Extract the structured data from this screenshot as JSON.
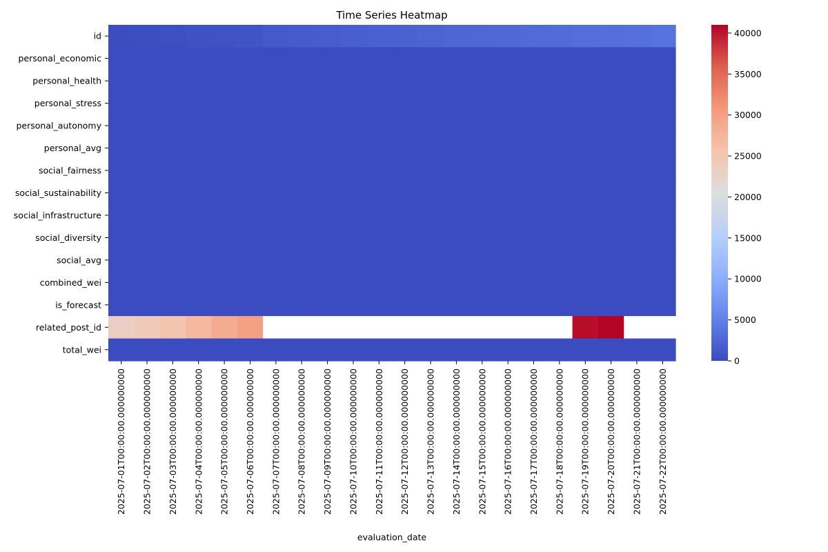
{
  "chart_data": {
    "type": "heatmap",
    "title": "Time Series Heatmap",
    "xlabel": "evaluation_date",
    "ylabel": "",
    "x": [
      "2025-07-01T00:00:00.000000000",
      "2025-07-02T00:00:00.000000000",
      "2025-07-03T00:00:00.000000000",
      "2025-07-04T00:00:00.000000000",
      "2025-07-05T00:00:00.000000000",
      "2025-07-06T00:00:00.000000000",
      "2025-07-07T00:00:00.000000000",
      "2025-07-08T00:00:00.000000000",
      "2025-07-09T00:00:00.000000000",
      "2025-07-10T00:00:00.000000000",
      "2025-07-11T00:00:00.000000000",
      "2025-07-12T00:00:00.000000000",
      "2025-07-13T00:00:00.000000000",
      "2025-07-14T00:00:00.000000000",
      "2025-07-15T00:00:00.000000000",
      "2025-07-16T00:00:00.000000000",
      "2025-07-17T00:00:00.000000000",
      "2025-07-18T00:00:00.000000000",
      "2025-07-19T00:00:00.000000000",
      "2025-07-20T00:00:00.000000000",
      "2025-07-21T00:00:00.000000000",
      "2025-07-22T00:00:00.000000000"
    ],
    "y": [
      "id",
      "personal_economic",
      "personal_health",
      "personal_stress",
      "personal_autonomy",
      "personal_avg",
      "social_fairness",
      "social_sustainability",
      "social_infrastructure",
      "social_diversity",
      "social_avg",
      "combined_wei",
      "is_forecast",
      "related_post_id",
      "total_wei"
    ],
    "values": [
      [
        100,
        200,
        300,
        500,
        600,
        800,
        1200,
        1500,
        1600,
        1800,
        1900,
        2000,
        2200,
        2500,
        2600,
        2700,
        2800,
        2900,
        3200,
        3300,
        3400,
        3700
      ],
      [
        0,
        0,
        0,
        0,
        0,
        0,
        0,
        0,
        0,
        0,
        0,
        0,
        0,
        0,
        0,
        0,
        0,
        0,
        0,
        0,
        0,
        0
      ],
      [
        0,
        0,
        0,
        0,
        0,
        0,
        0,
        0,
        0,
        0,
        0,
        0,
        0,
        0,
        0,
        0,
        0,
        0,
        0,
        0,
        0,
        0
      ],
      [
        0,
        0,
        0,
        0,
        0,
        0,
        0,
        0,
        0,
        0,
        0,
        0,
        0,
        0,
        0,
        0,
        0,
        0,
        0,
        0,
        0,
        0
      ],
      [
        0,
        0,
        0,
        0,
        0,
        0,
        0,
        0,
        0,
        0,
        0,
        0,
        0,
        0,
        0,
        0,
        0,
        0,
        0,
        0,
        0,
        0
      ],
      [
        0,
        0,
        0,
        0,
        0,
        0,
        0,
        0,
        0,
        0,
        0,
        0,
        0,
        0,
        0,
        0,
        0,
        0,
        0,
        0,
        0,
        0
      ],
      [
        0,
        0,
        0,
        0,
        0,
        0,
        0,
        0,
        0,
        0,
        0,
        0,
        0,
        0,
        0,
        0,
        0,
        0,
        0,
        0,
        0,
        0
      ],
      [
        0,
        0,
        0,
        0,
        0,
        0,
        0,
        0,
        0,
        0,
        0,
        0,
        0,
        0,
        0,
        0,
        0,
        0,
        0,
        0,
        0,
        0
      ],
      [
        0,
        0,
        0,
        0,
        0,
        0,
        0,
        0,
        0,
        0,
        0,
        0,
        0,
        0,
        0,
        0,
        0,
        0,
        0,
        0,
        0,
        0
      ],
      [
        0,
        0,
        0,
        0,
        0,
        0,
        0,
        0,
        0,
        0,
        0,
        0,
        0,
        0,
        0,
        0,
        0,
        0,
        0,
        0,
        0,
        0
      ],
      [
        0,
        0,
        0,
        0,
        0,
        0,
        0,
        0,
        0,
        0,
        0,
        0,
        0,
        0,
        0,
        0,
        0,
        0,
        0,
        0,
        0,
        0
      ],
      [
        0,
        0,
        0,
        0,
        0,
        0,
        0,
        0,
        0,
        0,
        0,
        0,
        0,
        0,
        0,
        0,
        0,
        0,
        0,
        0,
        0,
        0
      ],
      [
        0,
        0,
        0,
        0,
        0,
        0,
        0,
        0,
        0,
        0,
        0,
        0,
        0,
        0,
        0,
        0,
        0,
        0,
        0,
        0,
        0,
        0
      ],
      [
        23500,
        24500,
        25500,
        27000,
        28500,
        30000,
        null,
        null,
        null,
        null,
        null,
        null,
        null,
        null,
        null,
        null,
        null,
        null,
        40500,
        41000,
        null,
        null
      ],
      [
        0,
        0,
        0,
        0,
        0,
        0,
        0,
        0,
        0,
        0,
        0,
        0,
        0,
        0,
        0,
        0,
        0,
        0,
        0,
        0,
        0,
        0
      ]
    ],
    "colormap": "coolwarm",
    "vmin": 0,
    "vmax": 41000,
    "missing_color": "#ffffff",
    "colorbar_ticks": [
      "0",
      "5000",
      "10000",
      "15000",
      "20000",
      "25000",
      "30000",
      "35000",
      "40000"
    ],
    "grid": false
  }
}
